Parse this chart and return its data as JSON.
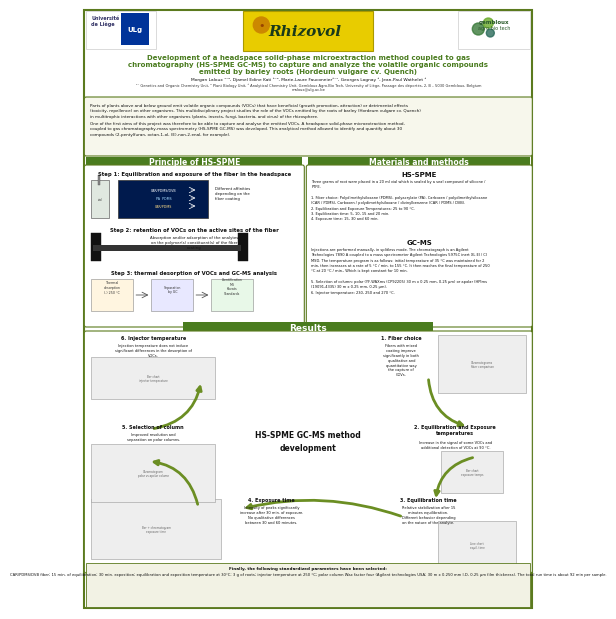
{
  "title_line1": "Development of a headspace solid-phase microextraction method coupled to gas",
  "title_line2": "chromatography (HS-SPME GC-MS) to capture and analyze the volatile organic compounds",
  "title_line3": "emitted by barley roots (Hordeum vulgare cv. Quench)",
  "authors": "Morgan Laloux ¹⁻², Djamel Edine Kati ³⁻⁴, Marie-Laure Fauconnier³⁻¹, Georges Lognay ³, Jean-Paul Wathelet ³",
  "affiliation": "¹⁻ Genetics and Organic Chemistry Unit, ² Plant Biology Unit, ³ Analytical Chemistry Unit, Gembloux Agro-Bio Tech, University of Liège, Passage des déportés, 2, B – 5030 Gembloux, Belgium",
  "email": "maloux@ulg.ac.be",
  "intro_text1": "Parts of plants above and below ground emit volatile organic compounds (VOCs) that have beneficial (growth promotion, attraction) or detrimental effects\n(toxicity, repellence) on other organisms. This multidisciplinary project studies the role of the VOCs emitted by the roots of barley (Hordeum vulgare cv. Quench)\nin multitrophic interactions with other organisms (plants, insects, fungi, bacteria, and virus) of the rhizosphere.",
  "intro_text2": "One of the first aims of this project was therefore to be able to capture and analyse the emitted VOCs. A headspace solid-phase microextraction method,\ncoupled to gas chromatography-mass spectrometry (HS-SPME GC-MS) was developed. This analytical method allowed to identify and quantify about 30\ncompounds (2-pentylfuran, octan-1-ol, (E)-non-2-enal, for example).",
  "section_left": "Principle of HS-SPME",
  "section_right": "Materials and methods",
  "step1": "Step 1: Equilibration and exposure of the fiber in the headspace",
  "step2": "Step 2: retention of VOCs on the active sites of the fiber",
  "step3": "Step 3: thermal desorption of VOCs and GC-MS analysis",
  "diff_affinities": "Different affinities\ndepending on the\nfiber coating",
  "absorption_text": "Absorption and/or adsorption of the analytes\non the polymer(s) constituent(s) of the fiber\ncoating",
  "hs_spme_title": "HS-SPME",
  "hs_spme_text": "Three grams of root were placed in a 20 ml vial which is sealed by a seal composed of silicone /\nPTFE.\n\n1. Fiber choice: Polydimethylsiloxane (PDMS), polyacrylate (PA), Carboxen / polydimethylsiloxane\n(CAR / PDMS), Carboxen / polydimethylsiloxane / divinylbenzene (CAR / PDMS / DVB).\n2. Equilibration and Exposure Temperatures: 25 to 90 °C.\n3. Equilibration time: 5, 10, 15 and 20 min.\n4. Exposure time: 15, 30 and 60 min.",
  "gcms_title": "GC-MS",
  "gcms_text": "Injections are performed manually, in splitless mode. The chromatograph is an Agilent\nTechnologies 7890 A coupled to a mass spectrometer Agilent Technologies 5975C inert XL El / CI\nMSD. The temperature program is as follows: initial temperature of 35 °C was maintained for 2\nmin, then increases at a rate of 5 °C / min. to 155 °C. It then reaches the final temperature of 250\n°C at 20 °C / min., Which is kept constant for 10 min.\n\n5. Selection of column: polar (YF-WAXms (CP92205) 30 m x 0.25 mm, 0.25 μm) or apolar (HPIms\n(19091-4335) 30 m x 0.25 mm, 0.25 μm).\n6. Injector temperature: 230, 250 and 270 °C.",
  "results_title": "Results",
  "center_title": "HS-SPME GC-MS method\ndevelopment",
  "result1_title": "1. Fiber choice",
  "result1_text": "Fibers with mixed\ncoating improve\nsignificantly in both\nqualitative and\nquantitative way\nthe capture of\nCOVs.",
  "result2_title": "2. Equilibration and Exposure\ntemperatures",
  "result2_text": "Increase in the signal of some VOCs and\nadditional detection of VOCs at 90 °C.",
  "result3_title": "3. Equilibration time",
  "result3_text": "Relative stabilization after 15\nminutes equilibration.\nDifferent behavior depending\non the nature of the analyte.",
  "result4_title": "4. Exposure time",
  "result4_text": "Intensity of peaks significantly\nincrease after 30 min. of exposure.\nNo qualitative differences\nbetween 30 and 60 minutes.",
  "result5_title": "5. Selection of column",
  "result5_text": "Improved resolution and\nseparation on polar columns.",
  "result6_title": "6. Injector temperature",
  "result6_text": "Injection temperature does not induce\nsignificant differences in the desorption of\nVOCs.",
  "footer_text1": "Finally, the following standardized parameters have been selected:",
  "footer_text2": "CAR/PDMS/DVB fiber; 15 min. of equilibration; 30 min. exposition; equilibration and exposition temperature at 30°C; 3 g of roots; injector temperature at 250 °C; polar column Wax factor four (Agilent technologies USA; 30 m x 0.250 mm I.D, 0.25 μm film thickness). The total run time is about 92 min per sample.",
  "green_dark": "#4a7c1f",
  "green_arrow": "#6b8e23",
  "poster_bg": "#ffffff",
  "border_color": "#5b7a1e"
}
